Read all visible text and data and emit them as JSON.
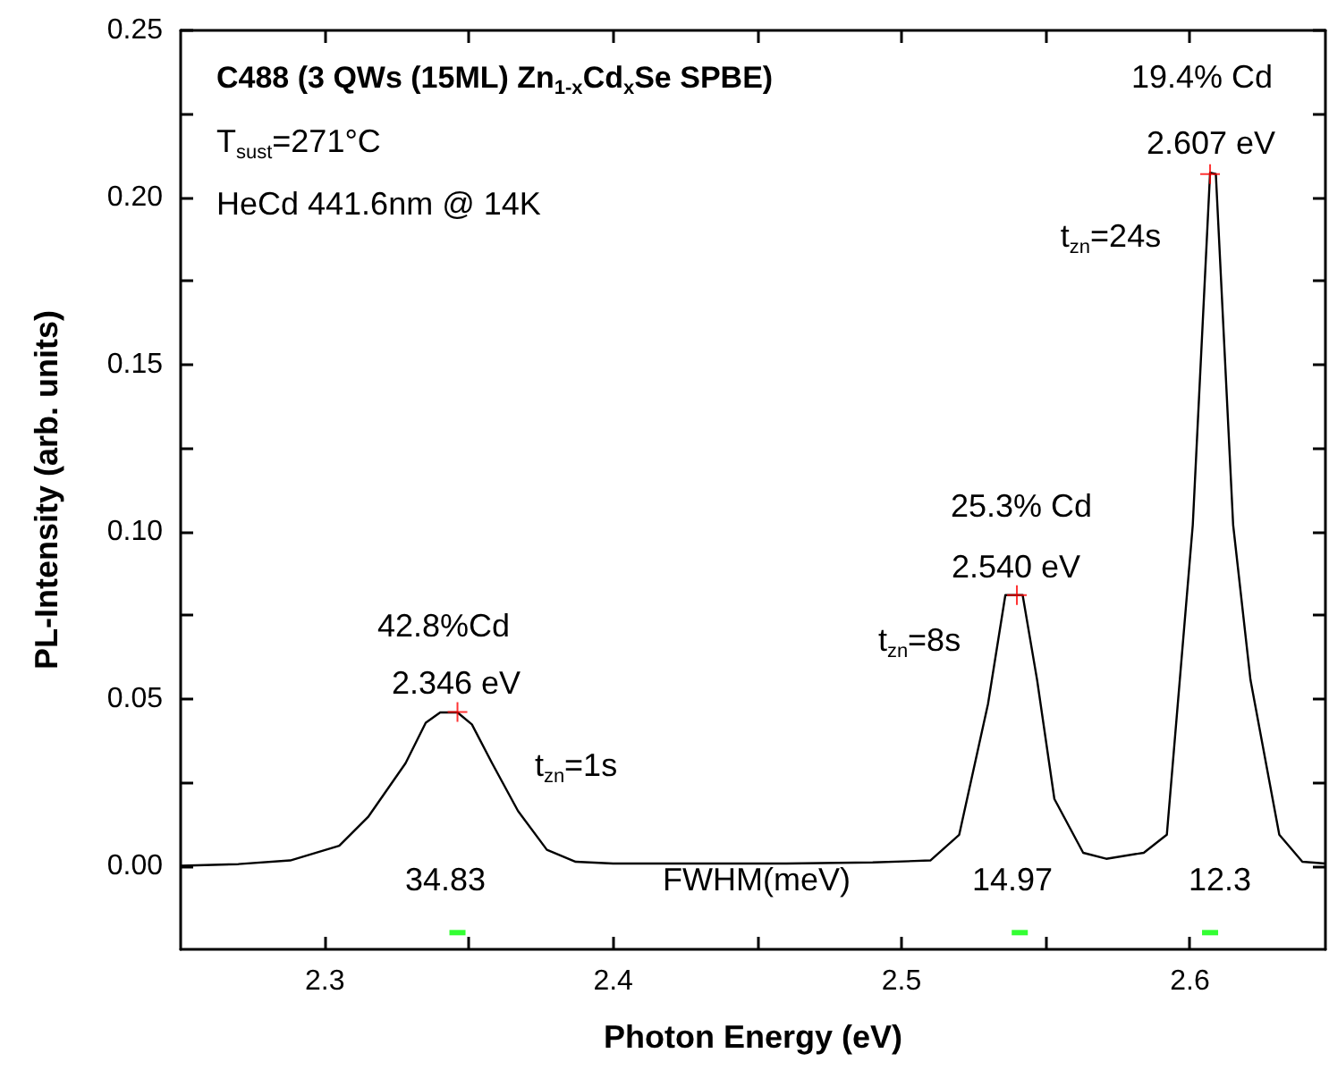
{
  "chart_data": {
    "type": "line",
    "title": "C488 (3 QWs (15ML) Zn$_{1-x}$Cd$_{x}$Se SPBE)",
    "xlabel": "Photon Energy (eV)",
    "ylabel": "PL-Intensity (arb. units)",
    "series": [
      {
        "color": "#000000",
        "marker": "none",
        "x": [
          2.25,
          2.27,
          2.288,
          2.305,
          2.315,
          2.328,
          2.335,
          2.34,
          2.346,
          2.351,
          2.358,
          2.367,
          2.377,
          2.387,
          2.4,
          2.43,
          2.46,
          2.49,
          2.51,
          2.52,
          2.53,
          2.536,
          2.542,
          2.547,
          2.553,
          2.563,
          2.571,
          2.584,
          2.592,
          2.601,
          2.607,
          2.609,
          2.615,
          2.621,
          2.631,
          2.639,
          2.647
        ],
        "values": [
          0.0,
          0.0005,
          0.0016,
          0.006,
          0.0146,
          0.0307,
          0.0428,
          0.0459,
          0.0459,
          0.0423,
          0.0307,
          0.0164,
          0.0048,
          0.0012,
          0.0007,
          0.0007,
          0.0007,
          0.001,
          0.0016,
          0.0093,
          0.0485,
          0.081,
          0.081,
          0.0557,
          0.02,
          0.0039,
          0.0021,
          0.0039,
          0.0093,
          0.102,
          0.2074,
          0.207,
          0.102,
          0.0557,
          0.0093,
          0.0012,
          0.0007
        ]
      },
      {
        "type": "scatter",
        "color": "#ff0000",
        "marker": "cross",
        "x": [
          2.346,
          2.54,
          2.607
        ],
        "values": [
          0.046,
          0.081,
          0.207
        ]
      },
      {
        "type": "scatter",
        "color": "#00ff00",
        "marker": "square",
        "x": [
          2.346,
          2.541,
          2.607
        ],
        "values": [
          -0.02,
          -0.02,
          -0.02
        ]
      }
    ],
    "xlim": [
      2.25,
      2.647
    ],
    "ylim": [
      -0.025,
      0.25
    ],
    "xticks": [
      2.3,
      {
        "value": 2.35,
        "label": null
      },
      2.4,
      {
        "value": 2.45,
        "label": null
      },
      2.5,
      {
        "value": 2.55,
        "label": null
      },
      2.6
    ],
    "yticks": [
      {
        "value": 0,
        "label": "0.00"
      },
      {
        "value": 0.025,
        "label": null
      },
      {
        "value": 0.05,
        "label": "0.05"
      },
      {
        "value": 0.075,
        "label": null
      },
      {
        "value": 0.1,
        "label": "0.10"
      },
      {
        "value": 0.125,
        "label": null
      },
      {
        "value": 0.15,
        "label": "0.15"
      },
      {
        "value": 0.175,
        "label": null
      },
      {
        "value": 0.2,
        "label": "0.20"
      },
      {
        "value": 0.225,
        "label": null
      },
      {
        "value": 0.25,
        "label": "0.25"
      }
    ],
    "annotations": [
      "T$_{sust}$=271°C",
      "HeCd 441.6nm @ 14K",
      "19.4% Cd",
      "2.607 eV",
      "t$_{zn}$=24s",
      "25.3% Cd",
      "2.540 eV",
      "t$_{zn}$=8s",
      "42.8%Cd",
      "2.346 eV",
      "t$_{zn}$=1s",
      "34.83",
      "FWHM(meV)",
      "14.97",
      "12.3"
    ]
  }
}
